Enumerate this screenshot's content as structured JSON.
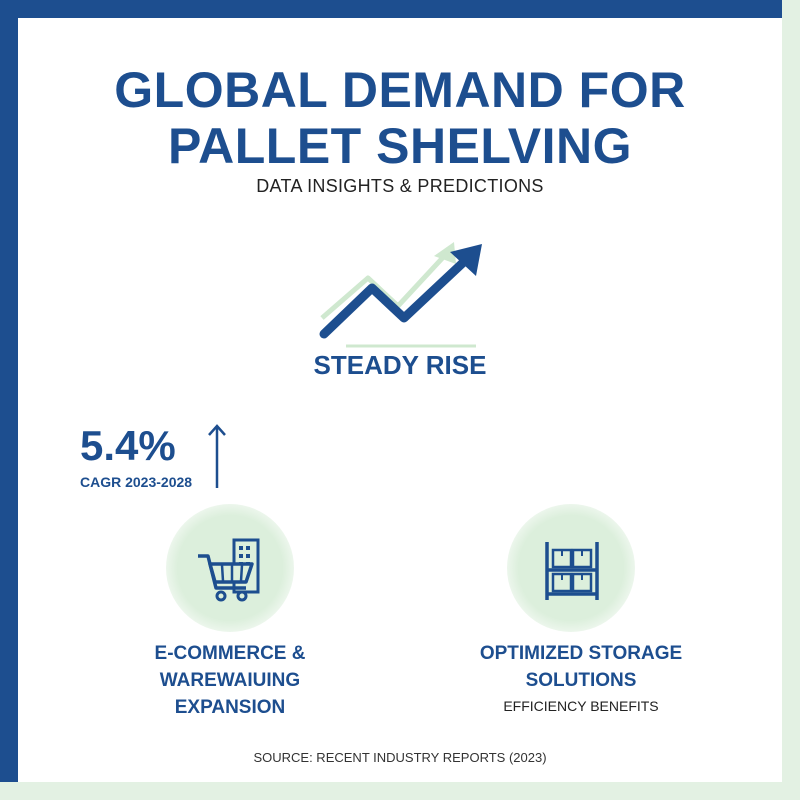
{
  "title": "GLOBAL DEMAND FOR PALLET SHELVING",
  "subtitle": "DATA INSIGHTS & PREDICTIONS",
  "trend": {
    "label": "STEADY RISE",
    "icon": "trend-up-arrow-icon"
  },
  "stat": {
    "value": "5.4%",
    "label": "CAGR 2023-2028",
    "icon": "up-arrow-icon"
  },
  "features": [
    {
      "title": "E-COMMERCE & WAREWAIUING EXPANSION",
      "icon": "shopping-cart-warehouse-icon"
    },
    {
      "title": "OPTIMIZED STORAGE SOLUTIONS",
      "subtitle": "EFFICIENCY BENEFITS",
      "icon": "storage-shelf-icon"
    }
  ],
  "source": "SOURCE: RECENT INDUSTRY REPORTS (2023)",
  "colors": {
    "primary": "#1d4e8f",
    "accent_green": "#d9eed9",
    "frame_green": "#e3f1e3",
    "text": "#222222"
  }
}
